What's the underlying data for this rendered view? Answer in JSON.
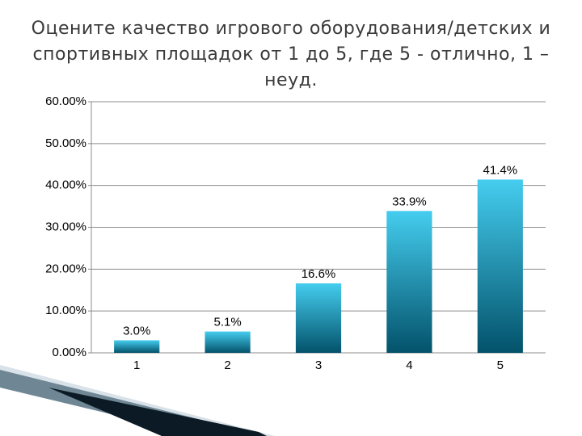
{
  "chart_data": {
    "type": "bar",
    "title": "Оцените качество игрового оборудования/детских и спортивных площадок от 1 до 5, где 5 - отлично, 1 – неуд.",
    "categories": [
      "1",
      "2",
      "3",
      "4",
      "5"
    ],
    "values": [
      3.0,
      5.1,
      16.6,
      33.9,
      41.4
    ],
    "value_labels": [
      "3.0%",
      "5.1%",
      "16.6%",
      "33.9%",
      "41.4%"
    ],
    "colors": [
      "#45cdef",
      "#03526a"
    ],
    "ylim": [
      0,
      60
    ],
    "yticks": [
      {
        "value": 0,
        "label": "0.00%"
      },
      {
        "value": 10,
        "label": "10.00%"
      },
      {
        "value": 20,
        "label": "20.00%"
      },
      {
        "value": 30,
        "label": "30.00%"
      },
      {
        "value": 40,
        "label": "40.00%"
      },
      {
        "value": 50,
        "label": "50.00%"
      },
      {
        "value": 60,
        "label": "60.00%"
      }
    ],
    "grid": true
  }
}
